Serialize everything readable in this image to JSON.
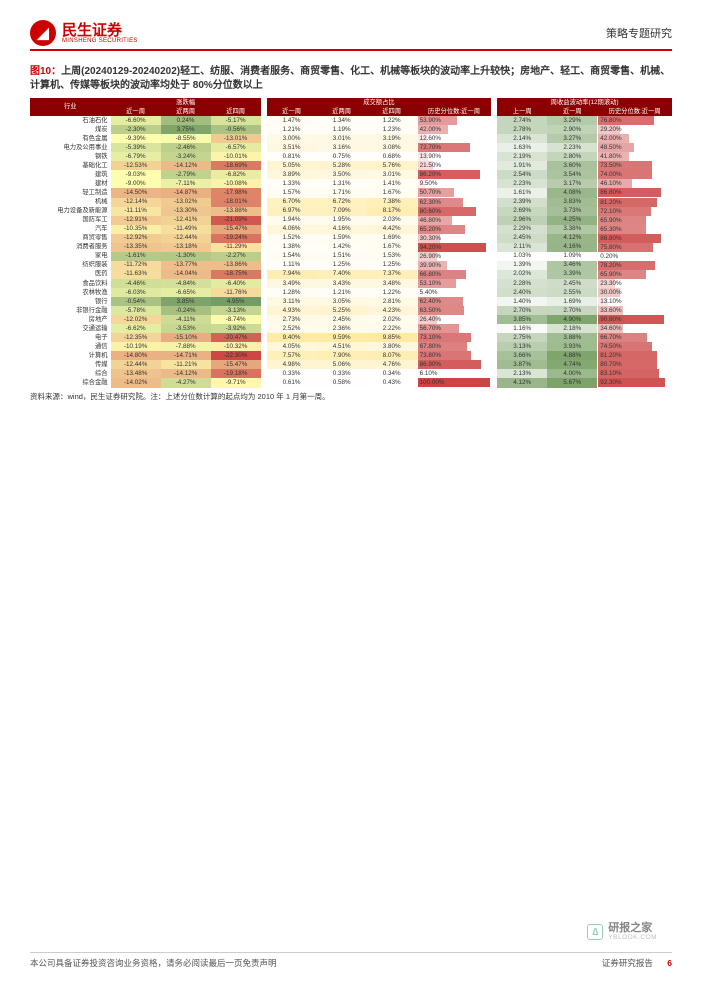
{
  "header": {
    "brand_cn": "民生证券",
    "brand_en": "MINSHENG SECURITIES",
    "doctype": "策略专题研究"
  },
  "figure_title_pre": "图10：",
  "figure_title": "上周(20240129-20240202)轻工、纺服、消费者服务、商贸零售、化工、机械等板块的波动率上升较快；房地产、轻工、商贸零售、机械、计算机、传媒等板块的波动率均处于 80%分位数以上",
  "source": "资料来源：wind，民生证券研究院。注：上述分位数计算的起点均为 2010 年 1 月第一周。",
  "footer": {
    "left": "本公司具备证券投资咨询业务资格，请务必阅读最后一页免责声明",
    "right": "证券研究报告",
    "page": "6"
  },
  "watermark": {
    "line1": "研报之家",
    "line2": "YBLOOK.COM"
  },
  "grp_headers": [
    "行业",
    "涨跌幅",
    "成交额占比",
    "周收益波动率(12期滚动)"
  ],
  "sub_headers": [
    "近一周",
    "近两周",
    "近四周",
    "近一周",
    "近两周",
    "近四周",
    "历史分位数:近一周",
    "上一周",
    "近一周",
    "历史分位数:近一周"
  ],
  "scale": {
    "ret": {
      "min": -22.5,
      "max": 4.0,
      "low": "#cc4444",
      "mid": "#ffffb0",
      "high": "#7da36a"
    },
    "share": {
      "min": 0.3,
      "max": 10.0,
      "low": "#ffffff",
      "high": "#ffeaa0"
    },
    "vol": {
      "min": 1.0,
      "max": 4.95,
      "low": "#ffffff",
      "high": "#7da36a"
    },
    "pct": {
      "low_color": "#ffffff",
      "high_color": "#cc4444"
    }
  },
  "rows": [
    {
      "n": "石油石化",
      "r1": -6.6,
      "r2": 0.24,
      "r4": -5.17,
      "s1": 1.47,
      "s2": 1.34,
      "s4": 1.22,
      "sp": 53.9,
      "vp": 2.74,
      "v1": 3.29,
      "hp": 76.8
    },
    {
      "n": "煤炭",
      "r1": -2.3,
      "r2": 3.75,
      "r4": -0.56,
      "s1": 1.21,
      "s2": 1.19,
      "s4": 1.23,
      "sp": 42.0,
      "vp": 2.78,
      "v1": 2.9,
      "hp": 29.2
    },
    {
      "n": "有色金属",
      "r1": -9.39,
      "r2": -8.55,
      "r4": -13.01,
      "s1": 3.0,
      "s2": 3.01,
      "s4": 3.19,
      "sp": 12.6,
      "vp": 2.14,
      "v1": 3.27,
      "hp": 42.0
    },
    {
      "n": "电力及公用事业",
      "r1": -5.39,
      "r2": -2.46,
      "r4": -6.57,
      "s1": 3.51,
      "s2": 3.16,
      "s4": 3.08,
      "sp": 72.7,
      "vp": 1.63,
      "v1": 2.23,
      "hp": 48.5
    },
    {
      "n": "钢铁",
      "r1": -6.79,
      "r2": -3.24,
      "r4": -10.01,
      "s1": 0.81,
      "s2": 0.75,
      "s4": 0.68,
      "sp": 13.9,
      "vp": 2.19,
      "v1": 2.8,
      "hp": 41.8
    },
    {
      "n": "基础化工",
      "r1": -12.53,
      "r2": -14.12,
      "r4": -18.69,
      "s1": 5.05,
      "s2": 5.28,
      "s4": 5.76,
      "sp": 21.5,
      "vp": 1.91,
      "v1": 3.6,
      "hp": 73.5
    },
    {
      "n": "建筑",
      "r1": -9.03,
      "r2": -2.79,
      "r4": -6.82,
      "s1": 3.89,
      "s2": 3.5,
      "s4": 3.01,
      "sp": 86.2,
      "vp": 2.54,
      "v1": 3.54,
      "hp": 74.0
    },
    {
      "n": "建材",
      "r1": -9.0,
      "r2": -7.11,
      "r4": -10.08,
      "s1": 1.33,
      "s2": 1.31,
      "s4": 1.41,
      "sp": 9.5,
      "vp": 2.23,
      "v1": 3.17,
      "hp": 46.1
    },
    {
      "n": "轻工制造",
      "r1": -14.5,
      "r2": -14.87,
      "r4": -17.98,
      "s1": 1.57,
      "s2": 1.71,
      "s4": 1.67,
      "sp": 50.7,
      "vp": 1.61,
      "v1": 4.08,
      "hp": 86.8
    },
    {
      "n": "机械",
      "r1": -12.14,
      "r2": -13.02,
      "r4": -18.01,
      "s1": 6.7,
      "s2": 6.72,
      "s4": 7.38,
      "sp": 62.3,
      "vp": 2.39,
      "v1": 3.83,
      "hp": 81.2
    },
    {
      "n": "电力设备及新能源",
      "r1": -11.11,
      "r2": -13.3,
      "r4": -13.88,
      "s1": 6.97,
      "s2": 7.09,
      "s4": 8.17,
      "sp": 80.6,
      "vp": 2.69,
      "v1": 3.73,
      "hp": 72.1
    },
    {
      "n": "国防军工",
      "r1": -12.91,
      "r2": -12.41,
      "r4": -21.09,
      "s1": 1.94,
      "s2": 1.95,
      "s4": 2.03,
      "sp": 46.8,
      "vp": 2.96,
      "v1": 4.25,
      "hp": 65.9
    },
    {
      "n": "汽车",
      "r1": -10.35,
      "r2": -11.49,
      "r4": -15.47,
      "s1": 4.06,
      "s2": 4.16,
      "s4": 4.42,
      "sp": 65.2,
      "vp": 2.29,
      "v1": 3.38,
      "hp": 65.3
    },
    {
      "n": "商贸零售",
      "r1": -12.92,
      "r2": -12.44,
      "r4": -19.24,
      "s1": 1.52,
      "s2": 1.59,
      "s4": 1.69,
      "sp": 30.3,
      "vp": 2.45,
      "v1": 4.12,
      "hp": 86.8
    },
    {
      "n": "消费者服务",
      "r1": -13.35,
      "r2": -13.18,
      "r4": -11.29,
      "s1": 1.38,
      "s2": 1.42,
      "s4": 1.67,
      "sp": 94.2,
      "vp": 2.11,
      "v1": 4.16,
      "hp": 75.8
    },
    {
      "n": "家电",
      "r1": -1.61,
      "r2": -1.3,
      "r4": -2.27,
      "s1": 1.54,
      "s2": 1.51,
      "s4": 1.53,
      "sp": 26.9,
      "vp": 1.03,
      "v1": 1.09,
      "hp": 0.2
    },
    {
      "n": "纺织服装",
      "r1": -11.72,
      "r2": -13.77,
      "r4": -13.86,
      "s1": 1.11,
      "s2": 1.25,
      "s4": 1.25,
      "sp": 39.9,
      "vp": 1.39,
      "v1": 3.46,
      "hp": 78.2
    },
    {
      "n": "医药",
      "r1": -11.63,
      "r2": -14.04,
      "r4": -18.75,
      "s1": 7.94,
      "s2": 7.4,
      "s4": 7.37,
      "sp": 66.8,
      "vp": 2.02,
      "v1": 3.39,
      "hp": 65.9
    },
    {
      "n": "食品饮料",
      "r1": -4.46,
      "r2": -4.84,
      "r4": -6.4,
      "s1": 3.49,
      "s2": 3.43,
      "s4": 3.48,
      "sp": 53.1,
      "vp": 2.28,
      "v1": 2.45,
      "hp": 23.3
    },
    {
      "n": "农林牧渔",
      "r1": -6.03,
      "r2": -6.65,
      "r4": -11.76,
      "s1": 1.28,
      "s2": 1.21,
      "s4": 1.22,
      "sp": 5.4,
      "vp": 2.4,
      "v1": 2.55,
      "hp": 30.0
    },
    {
      "n": "银行",
      "r1": -0.54,
      "r2": 3.85,
      "r4": 4.95,
      "s1": 3.11,
      "s2": 3.05,
      "s4": 2.81,
      "sp": 62.4,
      "vp": 1.4,
      "v1": 1.69,
      "hp": 13.1
    },
    {
      "n": "非银行金融",
      "r1": -5.78,
      "r2": -0.24,
      "r4": -3.13,
      "s1": 4.93,
      "s2": 5.25,
      "s4": 4.23,
      "sp": 63.5,
      "vp": 2.7,
      "v1": 2.7,
      "hp": 33.6
    },
    {
      "n": "房地产",
      "r1": -12.02,
      "r2": -4.11,
      "r4": -8.74,
      "s1": 2.73,
      "s2": 2.45,
      "s4": 2.02,
      "sp": 26.4,
      "vp": 3.85,
      "v1": 4.9,
      "hp": 90.8
    },
    {
      "n": "交通运输",
      "r1": -6.62,
      "r2": -3.53,
      "r4": -3.92,
      "s1": 2.52,
      "s2": 2.36,
      "s4": 2.22,
      "sp": 56.7,
      "vp": 1.16,
      "v1": 2.18,
      "hp": 34.6
    },
    {
      "n": "电子",
      "r1": -12.35,
      "r2": -15.1,
      "r4": -20.47,
      "s1": 9.4,
      "s2": 9.59,
      "s4": 9.85,
      "sp": 73.1,
      "vp": 2.75,
      "v1": 3.88,
      "hp": 66.7
    },
    {
      "n": "通信",
      "r1": -10.19,
      "r2": -7.88,
      "r4": -10.32,
      "s1": 4.05,
      "s2": 4.51,
      "s4": 3.8,
      "sp": 67.8,
      "vp": 3.13,
      "v1": 3.93,
      "hp": 74.5
    },
    {
      "n": "计算机",
      "r1": -14.8,
      "r2": -14.71,
      "r4": -22.3,
      "s1": 7.57,
      "s2": 7.9,
      "s4": 8.07,
      "sp": 73.8,
      "vp": 3.66,
      "v1": 4.88,
      "hp": 81.2
    },
    {
      "n": "传媒",
      "r1": -12.44,
      "r2": -11.21,
      "r4": -15.47,
      "s1": 4.98,
      "s2": 5.06,
      "s4": 4.76,
      "sp": 86.9,
      "vp": 3.87,
      "v1": 4.74,
      "hp": 80.7
    },
    {
      "n": "综合",
      "r1": -13.48,
      "r2": -14.12,
      "r4": -19.18,
      "s1": 0.33,
      "s2": 0.33,
      "s4": 0.34,
      "sp": 6.1,
      "vp": 2.13,
      "v1": 4.0,
      "hp": 83.1
    },
    {
      "n": "综合金融",
      "r1": -14.02,
      "r2": -4.27,
      "r4": -9.71,
      "s1": 0.61,
      "s2": 0.58,
      "s4": 0.43,
      "sp": 100.0,
      "vp": 4.12,
      "v1": 5.67,
      "hp": 92.3
    }
  ]
}
